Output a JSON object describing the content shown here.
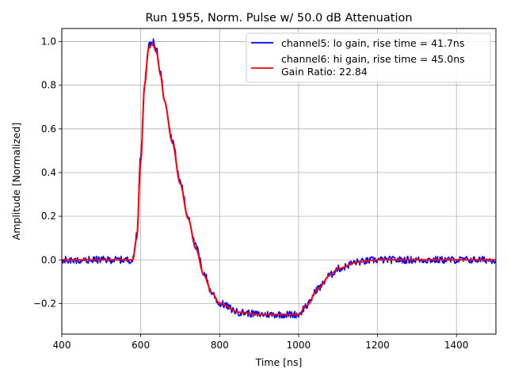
{
  "chart_data": {
    "type": "line",
    "title": "Run 1955, Norm. Pulse w/ 50.0 dB Attenuation",
    "xlabel": "Time [ns]",
    "ylabel": "Amplitude [Normalized]",
    "xlim": [
      400,
      1500
    ],
    "ylim": [
      -0.34,
      1.06
    ],
    "xticks": [
      400,
      600,
      800,
      1000,
      1200,
      1400
    ],
    "xtick_labels": [
      "400",
      "600",
      "800",
      "1000",
      "1200",
      "1400"
    ],
    "yticks": [
      -0.2,
      0.0,
      0.2,
      0.4,
      0.6,
      0.8,
      1.0
    ],
    "ytick_labels": [
      "−0.2",
      "0.0",
      "0.2",
      "0.4",
      "0.6",
      "0.8",
      "1.0"
    ],
    "grid": true,
    "legend_position": "top-right",
    "legend_extra": "Gain Ratio: 22.84",
    "series": [
      {
        "name": "channel5: lo gain, rise time = 41.7ns",
        "color": "#0000ff",
        "noisy": true,
        "x": [
          400,
          580,
          590,
          600,
          610,
          620,
          630,
          640,
          650,
          660,
          680,
          700,
          720,
          740,
          760,
          780,
          800,
          850,
          900,
          950,
          1000,
          1020,
          1050,
          1080,
          1100,
          1150,
          1200,
          1300,
          1400,
          1500
        ],
        "y": [
          0.0,
          0.0,
          0.12,
          0.48,
          0.82,
          0.98,
          1.0,
          0.96,
          0.86,
          0.74,
          0.55,
          0.36,
          0.2,
          0.06,
          -0.06,
          -0.15,
          -0.2,
          -0.24,
          -0.25,
          -0.25,
          -0.25,
          -0.21,
          -0.13,
          -0.07,
          -0.04,
          -0.01,
          0.0,
          0.0,
          0.0,
          0.0
        ]
      },
      {
        "name": "channel6: hi gain, rise time = 45.0ns",
        "color": "#ff0000",
        "noisy": false,
        "x": [
          400,
          580,
          590,
          600,
          610,
          620,
          630,
          640,
          650,
          660,
          680,
          700,
          720,
          740,
          760,
          780,
          800,
          850,
          900,
          950,
          1000,
          1020,
          1050,
          1080,
          1100,
          1150,
          1200,
          1300,
          1400,
          1500
        ],
        "y": [
          0.0,
          0.0,
          0.1,
          0.45,
          0.8,
          0.97,
          0.99,
          0.95,
          0.85,
          0.73,
          0.54,
          0.35,
          0.19,
          0.05,
          -0.07,
          -0.15,
          -0.2,
          -0.24,
          -0.25,
          -0.25,
          -0.25,
          -0.21,
          -0.13,
          -0.07,
          -0.04,
          -0.01,
          0.0,
          0.0,
          0.0,
          0.0
        ]
      }
    ]
  }
}
